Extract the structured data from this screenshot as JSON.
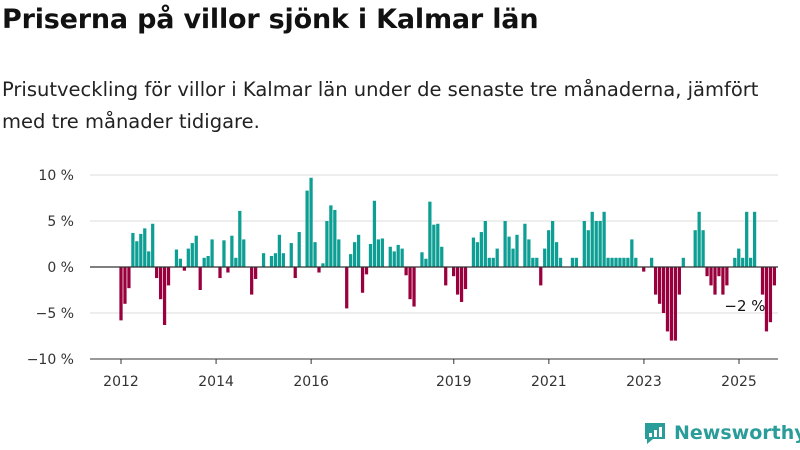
{
  "header": {
    "title": "Priserna på villor sjönk i Kalmar län",
    "subtitle": "Prisutveckling för villor i Kalmar län under de senaste tre månaderna, jämfört med tre månader tidigare."
  },
  "brand": {
    "name": "Newsworthy",
    "icon": "newsworthy-logo-icon"
  },
  "colors": {
    "positive": "#0d9e94",
    "negative": "#99003d",
    "grid": "#dcdcdc",
    "axis": "#333333"
  },
  "chart_data": {
    "type": "bar",
    "title": "",
    "xlabel": "",
    "ylabel": "",
    "ylim": [
      -10,
      10
    ],
    "grid": true,
    "y_ticks": [
      10,
      5,
      0,
      -5,
      -10
    ],
    "y_tick_labels": [
      "10 %",
      "5 %",
      "0 %",
      "−5 %",
      "−10 %"
    ],
    "x_tick_labels": [
      "2012",
      "2014",
      "2016",
      "2019",
      "2021",
      "2023",
      "2025"
    ],
    "x_tick_positions": [
      2012,
      2014,
      2016,
      2019,
      2021,
      2023,
      2025
    ],
    "x_start": 2012,
    "x_step": 0.0833,
    "annotation": {
      "text": "−2 %",
      "value": -2
    },
    "values": [
      -5.8,
      -4.0,
      -2.3,
      3.7,
      2.8,
      3.6,
      4.2,
      1.7,
      4.7,
      -1.2,
      -3.5,
      -6.3,
      -2.0,
      0.0,
      1.9,
      0.9,
      -0.4,
      2.0,
      2.6,
      3.4,
      -2.5,
      1.0,
      1.2,
      3.0,
      0.0,
      -1.2,
      2.9,
      -0.6,
      3.4,
      1.0,
      6.1,
      3.0,
      0.0,
      -3.0,
      -1.3,
      0.0,
      1.5,
      0.0,
      1.2,
      1.5,
      3.5,
      1.5,
      0.0,
      2.6,
      -1.2,
      3.8,
      0.0,
      8.3,
      9.7,
      2.7,
      -0.6,
      0.4,
      5.0,
      6.7,
      6.2,
      3.0,
      0.0,
      -4.5,
      1.4,
      2.7,
      3.5,
      -2.8,
      -0.8,
      2.5,
      7.2,
      3.0,
      3.1,
      0.0,
      2.2,
      1.7,
      2.4,
      2.0,
      -0.9,
      -3.5,
      -4.3,
      0.0,
      1.6,
      0.9,
      7.1,
      4.6,
      4.7,
      2.2,
      -2.0,
      0.0,
      -1.0,
      -3.0,
      -3.8,
      -2.4,
      0.0,
      3.2,
      2.7,
      3.8,
      5.0,
      1.0,
      1.0,
      2.0,
      0.0,
      5.0,
      3.3,
      2.0,
      3.5,
      0.0,
      4.7,
      3.0,
      1.0,
      1.0,
      -2.0,
      2.0,
      4.0,
      5.0,
      2.7,
      1.0,
      0.0,
      0.0,
      1.0,
      1.0,
      0.0,
      5.0,
      4.0,
      6.0,
      5.0,
      5.0,
      6.0,
      1.0,
      1.0,
      1.0,
      1.0,
      1.0,
      1.0,
      3.0,
      1.0,
      0.0,
      -0.5,
      0.0,
      1.0,
      -3.0,
      -4.0,
      -5.0,
      -7.0,
      -8.0,
      -8.0,
      -3.0,
      1.0,
      0.0,
      0.0,
      4.0,
      6.0,
      4.0,
      -1.0,
      -2.0,
      -3.0,
      -1.0,
      -3.0,
      -2.0,
      0.0,
      1.0,
      2.0,
      1.0,
      6.0,
      1.0,
      6.0,
      0.0,
      -3.0,
      -7.0,
      -6.0,
      -2.0
    ]
  }
}
